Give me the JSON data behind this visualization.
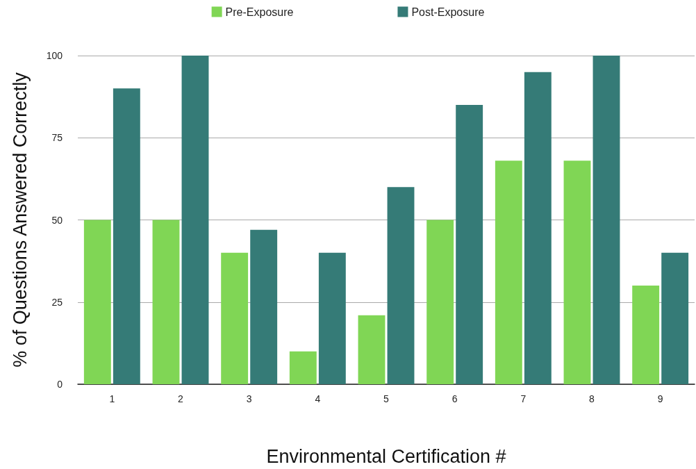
{
  "chart_data": {
    "type": "bar",
    "xlabel": "Environmental Certification #",
    "ylabel": "% of Questions Answered Correctly",
    "categories": [
      "1",
      "2",
      "3",
      "4",
      "5",
      "6",
      "7",
      "8",
      "9"
    ],
    "series": [
      {
        "name": "Pre-Exposure",
        "color": "#80d655",
        "values": [
          50,
          50,
          40,
          10,
          21,
          50,
          68,
          68,
          30
        ]
      },
      {
        "name": "Post-Exposure",
        "color": "#357b77",
        "values": [
          90,
          100,
          47,
          40,
          60,
          85,
          95,
          100,
          40
        ]
      }
    ],
    "ylim": [
      0,
      100
    ],
    "yticks": [
      0,
      25,
      50,
      75,
      100
    ],
    "grid": "y",
    "legend": "top"
  }
}
